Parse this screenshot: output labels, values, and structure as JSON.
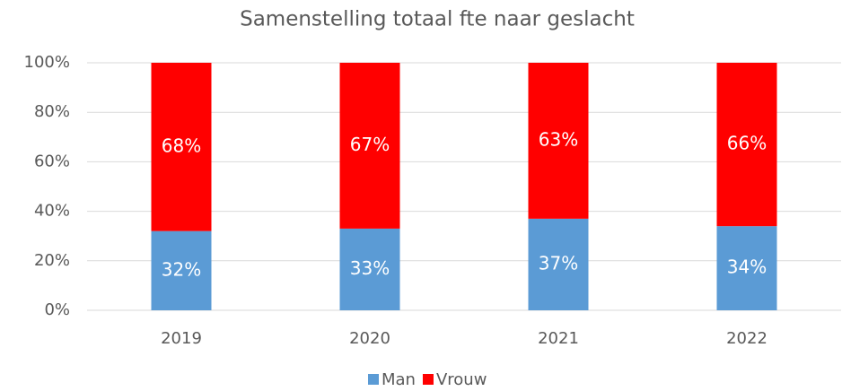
{
  "chart_data": {
    "type": "stacked_bar",
    "title": "Samenstelling totaal fte naar geslacht",
    "categories": [
      "2019",
      "2020",
      "2021",
      "2022"
    ],
    "series": [
      {
        "name": "Man",
        "color": "#5b9bd5",
        "values": [
          32,
          33,
          37,
          34
        ],
        "value_labels": [
          "32%",
          "33%",
          "37%",
          "34%"
        ]
      },
      {
        "name": "Vrouw",
        "color": "#ff0000",
        "values": [
          68,
          67,
          63,
          66
        ],
        "value_labels": [
          "68%",
          "67%",
          "63%",
          "66%"
        ]
      }
    ],
    "ylim": [
      0,
      100
    ],
    "yticks": [
      {
        "value": 0,
        "label": "0%"
      },
      {
        "value": 20,
        "label": "20%"
      },
      {
        "value": 40,
        "label": "40%"
      },
      {
        "value": 60,
        "label": "60%"
      },
      {
        "value": 80,
        "label": "80%"
      },
      {
        "value": 100,
        "label": "100%"
      }
    ],
    "grid": true,
    "legend": "bottom"
  }
}
